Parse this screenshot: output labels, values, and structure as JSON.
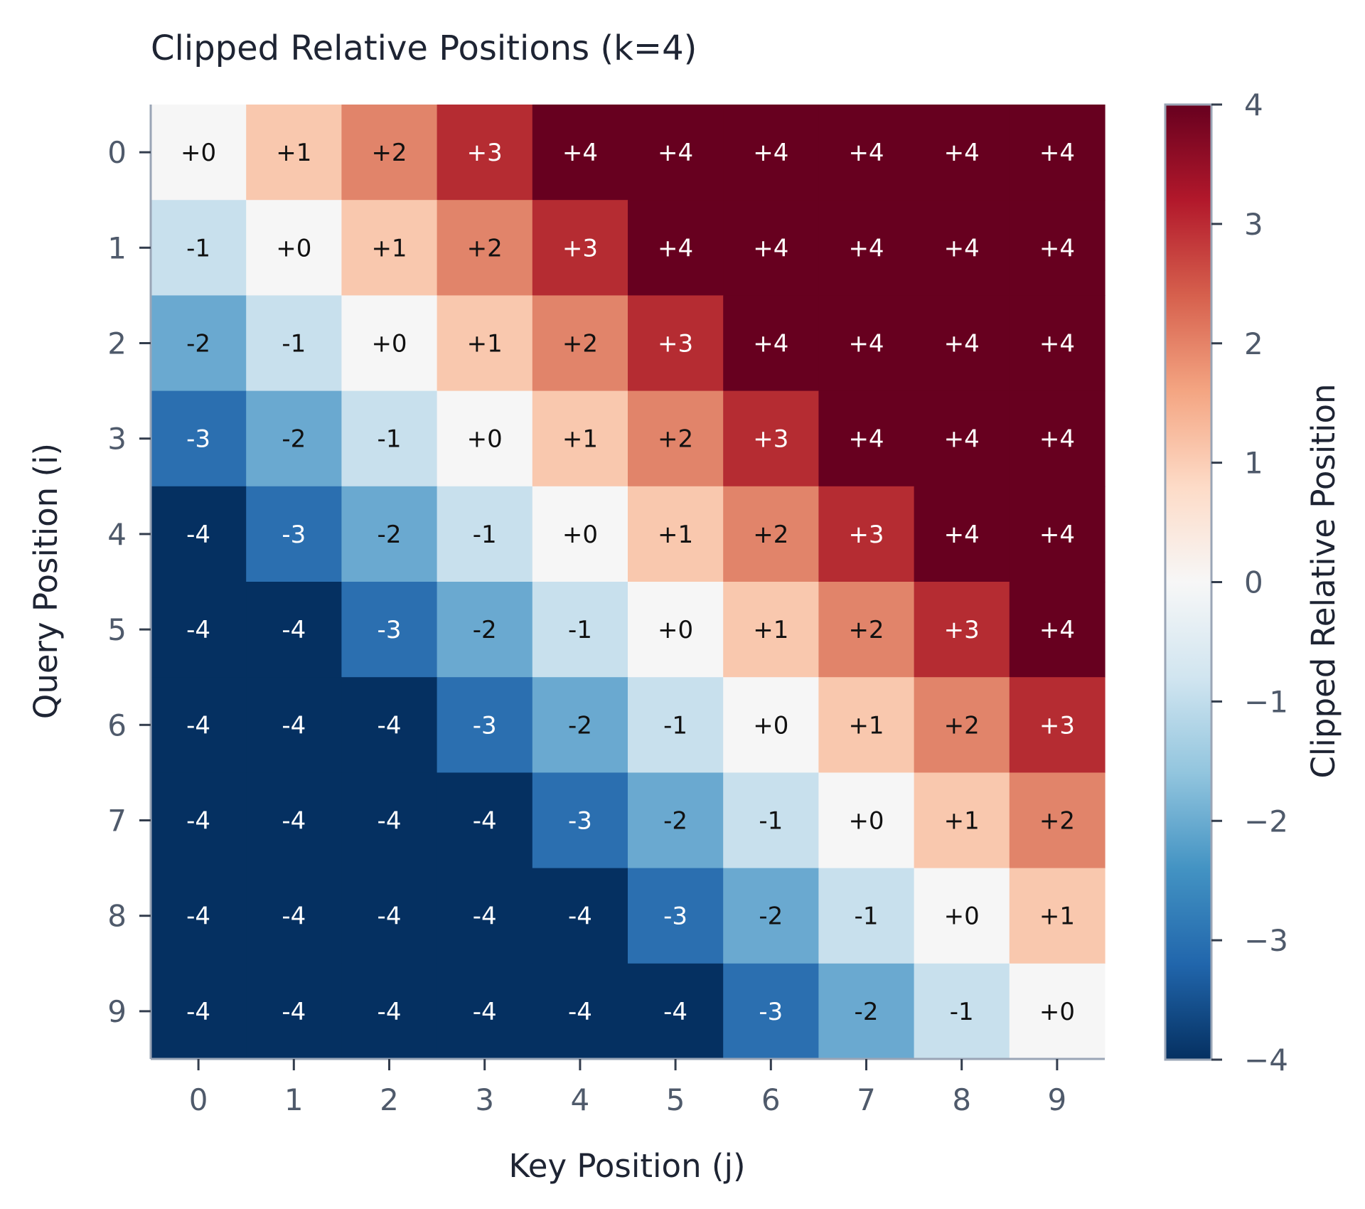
{
  "chart_data": {
    "type": "heatmap",
    "title": "Clipped Relative Positions (k=4)",
    "xlabel": "Key Position (j)",
    "ylabel": "Query Position (i)",
    "x_categories": [
      "0",
      "1",
      "2",
      "3",
      "4",
      "5",
      "6",
      "7",
      "8",
      "9"
    ],
    "y_categories": [
      "0",
      "1",
      "2",
      "3",
      "4",
      "5",
      "6",
      "7",
      "8",
      "9"
    ],
    "values": [
      [
        0,
        1,
        2,
        3,
        4,
        4,
        4,
        4,
        4,
        4
      ],
      [
        -1,
        0,
        1,
        2,
        3,
        4,
        4,
        4,
        4,
        4
      ],
      [
        -2,
        -1,
        0,
        1,
        2,
        3,
        4,
        4,
        4,
        4
      ],
      [
        -3,
        -2,
        -1,
        0,
        1,
        2,
        3,
        4,
        4,
        4
      ],
      [
        -4,
        -3,
        -2,
        -1,
        0,
        1,
        2,
        3,
        4,
        4
      ],
      [
        -4,
        -4,
        -3,
        -2,
        -1,
        0,
        1,
        2,
        3,
        4
      ],
      [
        -4,
        -4,
        -4,
        -3,
        -2,
        -1,
        0,
        1,
        2,
        3
      ],
      [
        -4,
        -4,
        -4,
        -4,
        -3,
        -2,
        -1,
        0,
        1,
        2
      ],
      [
        -4,
        -4,
        -4,
        -4,
        -4,
        -3,
        -2,
        -1,
        0,
        1
      ],
      [
        -4,
        -4,
        -4,
        -4,
        -4,
        -4,
        -3,
        -2,
        -1,
        0
      ]
    ],
    "cell_labels": [
      [
        "+0",
        "+1",
        "+2",
        "+3",
        "+4",
        "+4",
        "+4",
        "+4",
        "+4",
        "+4"
      ],
      [
        "-1",
        "+0",
        "+1",
        "+2",
        "+3",
        "+4",
        "+4",
        "+4",
        "+4",
        "+4"
      ],
      [
        "-2",
        "-1",
        "+0",
        "+1",
        "+2",
        "+3",
        "+4",
        "+4",
        "+4",
        "+4"
      ],
      [
        "-3",
        "-2",
        "-1",
        "+0",
        "+1",
        "+2",
        "+3",
        "+4",
        "+4",
        "+4"
      ],
      [
        "-4",
        "-3",
        "-2",
        "-1",
        "+0",
        "+1",
        "+2",
        "+3",
        "+4",
        "+4"
      ],
      [
        "-4",
        "-4",
        "-3",
        "-2",
        "-1",
        "+0",
        "+1",
        "+2",
        "+3",
        "+4"
      ],
      [
        "-4",
        "-4",
        "-4",
        "-3",
        "-2",
        "-1",
        "+0",
        "+1",
        "+2",
        "+3"
      ],
      [
        "-4",
        "-4",
        "-4",
        "-4",
        "-3",
        "-2",
        "-1",
        "+0",
        "+1",
        "+2"
      ],
      [
        "-4",
        "-4",
        "-4",
        "-4",
        "-4",
        "-3",
        "-2",
        "-1",
        "+0",
        "+1"
      ],
      [
        "-4",
        "-4",
        "-4",
        "-4",
        "-4",
        "-4",
        "-3",
        "-2",
        "-1",
        "+0"
      ]
    ],
    "colormap": "RdBu_r",
    "colorbar": {
      "label": "Clipped Relative Position",
      "range": [
        -4,
        4
      ],
      "ticks": [
        "4",
        "3",
        "2",
        "1",
        "0",
        "−1",
        "−2",
        "−3",
        "−4"
      ]
    },
    "value_colors": {
      "-4": "#053061",
      "-3": "#2b6fb0",
      "-2": "#6aa9d0",
      "-1": "#c8e0ed",
      "0": "#f6f6f6",
      "1": "#f9c8ae",
      "2": "#e1846a",
      "3": "#b52c32",
      "4": "#67001f"
    },
    "colorbar_gradient": [
      "#67001f",
      "#b2182b",
      "#d6604d",
      "#f4a582",
      "#fddbc7",
      "#f7f7f7",
      "#d1e5f0",
      "#92c5de",
      "#4393c3",
      "#2166ac",
      "#053061"
    ],
    "grid": false,
    "legend": "colorbar-right"
  }
}
